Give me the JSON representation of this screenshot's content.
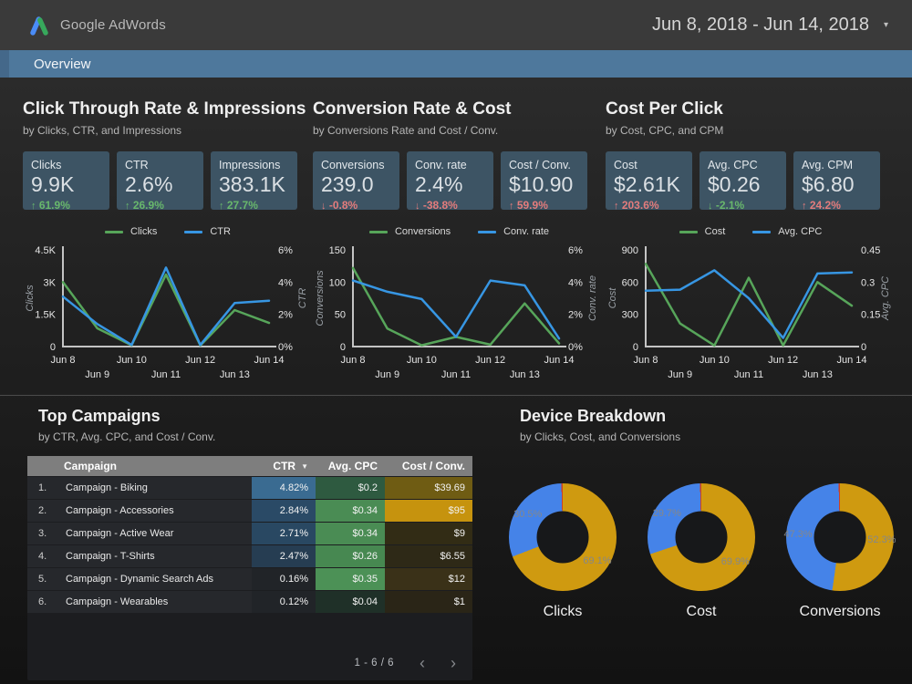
{
  "header": {
    "logo_text": "Google AdWords",
    "date_range": "Jun 8, 2018 - Jun 14, 2018"
  },
  "nav": {
    "tab": "Overview"
  },
  "sections": [
    {
      "title": "Click Through Rate & Impressions",
      "subtitle": "by Clicks, CTR, and Impressions",
      "chart_index": 0,
      "scorecards": [
        {
          "label": "Clicks",
          "value": "9.9K",
          "delta": "61.9%",
          "direction": "up",
          "sentiment": "good"
        },
        {
          "label": "CTR",
          "value": "2.6%",
          "delta": "26.9%",
          "direction": "up",
          "sentiment": "good"
        },
        {
          "label": "Impressions",
          "value": "383.1K",
          "delta": "27.7%",
          "direction": "up",
          "sentiment": "good"
        }
      ]
    },
    {
      "title": "Conversion Rate & Cost",
      "subtitle": "by Conversions Rate and Cost / Conv.",
      "chart_index": 1,
      "scorecards": [
        {
          "label": "Conversions",
          "value": "239.0",
          "delta": "-0.8%",
          "direction": "down",
          "sentiment": "bad"
        },
        {
          "label": "Conv. rate",
          "value": "2.4%",
          "delta": "-38.8%",
          "direction": "down",
          "sentiment": "bad"
        },
        {
          "label": "Cost / Conv.",
          "value": "$10.90",
          "delta": "59.9%",
          "direction": "up",
          "sentiment": "bad"
        }
      ]
    },
    {
      "title": "Cost Per Click",
      "subtitle": "by Cost, CPC, and CPM",
      "chart_index": 2,
      "scorecards": [
        {
          "label": "Cost",
          "value": "$2.61K",
          "delta": "203.6%",
          "direction": "up",
          "sentiment": "bad"
        },
        {
          "label": "Avg. CPC",
          "value": "$0.26",
          "delta": "-2.1%",
          "direction": "down",
          "sentiment": "good"
        },
        {
          "label": "Avg. CPM",
          "value": "$6.80",
          "delta": "24.2%",
          "direction": "up",
          "sentiment": "bad"
        }
      ]
    }
  ],
  "top_campaigns": {
    "title": "Top Campaigns",
    "subtitle": "by CTR, Avg. CPC, and Cost / Conv.",
    "chart_index": 6,
    "pagination": "1 - 6 / 6"
  },
  "device_breakdown": {
    "title": "Device Breakdown",
    "subtitle": "by Clicks, Cost, and Conversions",
    "chart_indexes": [
      3,
      4,
      5
    ]
  },
  "chart_data": [
    {
      "id": "clicks-ctr-line",
      "type": "line",
      "x_labels": [
        "Jun 8",
        "Jun 9",
        "Jun 10",
        "Jun 11",
        "Jun 12",
        "Jun 13",
        "Jun 14"
      ],
      "left_axis": {
        "title": "Clicks",
        "max": 4500,
        "ticks": [
          "0",
          "1.5K",
          "3K",
          "4.5K"
        ]
      },
      "right_axis": {
        "title": "CTR",
        "max": 6,
        "ticks": [
          "0%",
          "2%",
          "4%",
          "6%"
        ]
      },
      "series": [
        {
          "name": "Clicks",
          "axis": "left",
          "color": "#57a55a",
          "values": [
            3000,
            850,
            60,
            3350,
            30,
            1700,
            1100
          ]
        },
        {
          "name": "CTR",
          "axis": "right",
          "color": "#3796e3",
          "values": [
            3.1,
            1.4,
            0.1,
            4.9,
            0.1,
            2.7,
            2.85
          ]
        }
      ]
    },
    {
      "id": "conversions-rate-line",
      "type": "line",
      "x_labels": [
        "Jun 8",
        "Jun 9",
        "Jun 10",
        "Jun 11",
        "Jun 12",
        "Jun 13",
        "Jun 14"
      ],
      "left_axis": {
        "title": "Conversions",
        "max": 150,
        "ticks": [
          "0",
          "50",
          "100",
          "150"
        ]
      },
      "right_axis": {
        "title": "Conv. rate",
        "max": 6,
        "ticks": [
          "0%",
          "2%",
          "4%",
          "6%"
        ]
      },
      "series": [
        {
          "name": "Conversions",
          "axis": "left",
          "color": "#57a55a",
          "values": [
            122,
            28,
            2,
            15,
            3,
            67,
            5
          ]
        },
        {
          "name": "Conv. rate",
          "axis": "right",
          "color": "#3796e3",
          "values": [
            4.1,
            3.4,
            2.95,
            0.6,
            4.1,
            3.8,
            0.5
          ]
        }
      ]
    },
    {
      "id": "cost-cpc-line",
      "type": "line",
      "x_labels": [
        "Jun 8",
        "Jun 9",
        "Jun 10",
        "Jun 11",
        "Jun 12",
        "Jun 13",
        "Jun 14"
      ],
      "left_axis": {
        "title": "Cost",
        "max": 900,
        "ticks": [
          "0",
          "300",
          "600",
          "900"
        ]
      },
      "right_axis": {
        "title": "Avg. CPC",
        "max": 0.45,
        "ticks": [
          "0",
          "0.15",
          "0.3",
          "0.45"
        ]
      },
      "series": [
        {
          "name": "Cost",
          "axis": "left",
          "color": "#57a55a",
          "values": [
            770,
            215,
            10,
            640,
            5,
            600,
            380
          ]
        },
        {
          "name": "Avg. CPC",
          "axis": "right",
          "color": "#3796e3",
          "values": [
            0.26,
            0.265,
            0.355,
            0.225,
            0.04,
            0.34,
            0.345
          ]
        }
      ]
    },
    {
      "id": "device-clicks-donut",
      "type": "donut",
      "title": "Clicks",
      "slices": [
        {
          "label": "69.1%",
          "value": 69.1,
          "color": "#cf9a10"
        },
        {
          "label": "30.5%",
          "value": 30.5,
          "color": "#4583e8"
        },
        {
          "label": "",
          "value": 0.4,
          "color": "#cc4125"
        }
      ]
    },
    {
      "id": "device-cost-donut",
      "type": "donut",
      "title": "Cost",
      "slices": [
        {
          "label": "69.9%",
          "value": 69.9,
          "color": "#cf9a10"
        },
        {
          "label": "29.7%",
          "value": 29.7,
          "color": "#4583e8"
        },
        {
          "label": "",
          "value": 0.4,
          "color": "#cc4125"
        }
      ]
    },
    {
      "id": "device-conversions-donut",
      "type": "donut",
      "title": "Conversions",
      "slices": [
        {
          "label": "52.3%",
          "value": 52.3,
          "color": "#cf9a10"
        },
        {
          "label": "47.3%",
          "value": 47.3,
          "color": "#4583e8"
        },
        {
          "label": "",
          "value": 0.4,
          "color": "#cc4125"
        }
      ]
    },
    {
      "id": "top-campaigns-table",
      "type": "table",
      "columns": [
        "Campaign",
        "CTR",
        "Avg. CPC",
        "Cost / Conv."
      ],
      "sorted_by": "CTR",
      "rows": [
        {
          "rank": "1.",
          "name": "Campaign - Biking",
          "ctr": "4.82%",
          "ctr_bg": "#3a6b91",
          "cpc": "$0.2",
          "cpc_bg": "#2e5a40",
          "cost": "$39.69",
          "cost_bg": "#6f5c13"
        },
        {
          "rank": "2.",
          "name": "Campaign - Accessories",
          "ctr": "2.84%",
          "ctr_bg": "#2a4a66",
          "cpc": "$0.34",
          "cpc_bg": "#4a8c54",
          "cost": "$95",
          "cost_bg": "#c6930e"
        },
        {
          "rank": "3.",
          "name": "Campaign - Active Wear",
          "ctr": "2.71%",
          "ctr_bg": "#294862",
          "cpc": "$0.34",
          "cpc_bg": "#4a8c54",
          "cost": "$9",
          "cost_bg": "#322c15"
        },
        {
          "rank": "4.",
          "name": "Campaign - T-Shirts",
          "ctr": "2.47%",
          "ctr_bg": "#263d52",
          "cpc": "$0.26",
          "cpc_bg": "#478851",
          "cost": "$6.55",
          "cost_bg": "#2e2917"
        },
        {
          "rank": "5.",
          "name": "Campaign - Dynamic Search Ads",
          "ctr": "0.16%",
          "ctr_bg": "#212428",
          "cpc": "$0.35",
          "cpc_bg": "#4c9156",
          "cost": "$12",
          "cost_bg": "#3a3118"
        },
        {
          "rank": "6.",
          "name": "Campaign - Wearables",
          "ctr": "0.12%",
          "ctr_bg": "#212428",
          "cpc": "$0.04",
          "cpc_bg": "#1f3028",
          "cost": "$1",
          "cost_bg": "#2a2517"
        }
      ]
    }
  ],
  "colors": {
    "nav_bar": "#4e789c",
    "card_bg": "#3d5464",
    "positive": "#68b76c",
    "negative": "#e37c7c",
    "line_green": "#57a55a",
    "line_blue": "#3796e3",
    "donut_gold": "#cf9a10",
    "donut_blue": "#4583e8",
    "donut_red": "#cc4125",
    "table_header_bg": "#7e7e7e"
  },
  "icons": {
    "date_caret": "▾",
    "sort_caret": "▼",
    "chevron_left": "‹",
    "chevron_right": "›",
    "arrow_up": "↑",
    "arrow_down": "↓"
  }
}
